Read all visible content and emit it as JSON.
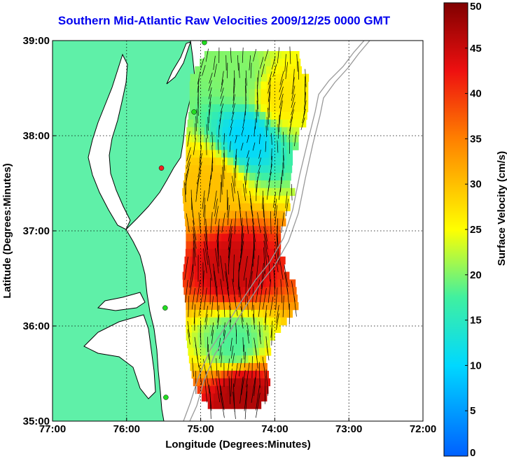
{
  "title": "Southern Mid-Atlantic Raw Velocities 2009/12/25 0000 GMT",
  "colors": {
    "land": "#5ff0a8",
    "coast": "#000000",
    "station": "#22dd22",
    "station_alt": "#ee2222",
    "bathymetry": "#999999"
  },
  "chart_data": {
    "type": "heatmap",
    "xlabel": "Longitude (Degrees:Minutes)",
    "ylabel": "Latitude (Degrees:Minutes)",
    "xlim": [
      -77,
      -72
    ],
    "ylim": [
      35,
      39
    ],
    "x_ticks": [
      {
        "value": -77,
        "label": "77:00"
      },
      {
        "value": -76,
        "label": "76:00"
      },
      {
        "value": -75,
        "label": "75:00"
      },
      {
        "value": -74,
        "label": "74:00"
      },
      {
        "value": -73,
        "label": "73:00"
      },
      {
        "value": -72,
        "label": "72:00"
      }
    ],
    "y_ticks": [
      {
        "value": 35,
        "label": "35:00"
      },
      {
        "value": 36,
        "label": "36:00"
      },
      {
        "value": 37,
        "label": "37:00"
      },
      {
        "value": 38,
        "label": "38:00"
      },
      {
        "value": 39,
        "label": "39:00"
      }
    ],
    "grid": true,
    "colorbar": {
      "label": "Surface Velocity (cm/s)",
      "min": 0,
      "max": 50,
      "ticks": [
        {
          "value": 0,
          "label": "0"
        },
        {
          "value": 5,
          "label": "5"
        },
        {
          "value": 10,
          "label": "10"
        },
        {
          "value": 15,
          "label": "15"
        },
        {
          "value": 20,
          "label": "20"
        },
        {
          "value": 25,
          "label": "25"
        },
        {
          "value": 30,
          "label": "30"
        },
        {
          "value": 35,
          "label": "35"
        },
        {
          "value": 40,
          "label": "40"
        },
        {
          "value": 45,
          "label": "45"
        },
        {
          "value": 50,
          "label": "50"
        }
      ]
    },
    "velocity_field": {
      "region": {
        "lon": [
          -75.3,
          -73.55
        ],
        "lat": [
          35.1,
          38.85
        ]
      },
      "samples": [
        {
          "lon": -74.5,
          "lat": 38.6,
          "speed": 20
        },
        {
          "lon": -74.0,
          "lat": 38.4,
          "speed": 27
        },
        {
          "lon": -74.4,
          "lat": 38.0,
          "speed": 10
        },
        {
          "lon": -74.9,
          "lat": 37.5,
          "speed": 30
        },
        {
          "lon": -74.6,
          "lat": 36.6,
          "speed": 45
        },
        {
          "lon": -74.6,
          "lat": 35.8,
          "speed": 18
        },
        {
          "lon": -74.5,
          "lat": 35.3,
          "speed": 47
        }
      ]
    }
  },
  "stations": [
    {
      "lon": -74.95,
      "lat": 38.98,
      "color": "station"
    },
    {
      "lon": -75.09,
      "lat": 38.25,
      "color": "station"
    },
    {
      "lon": -75.53,
      "lat": 37.66,
      "color": "station_alt"
    },
    {
      "lon": -75.48,
      "lat": 36.19,
      "color": "station"
    },
    {
      "lon": -75.47,
      "lat": 35.25,
      "color": "station"
    }
  ]
}
